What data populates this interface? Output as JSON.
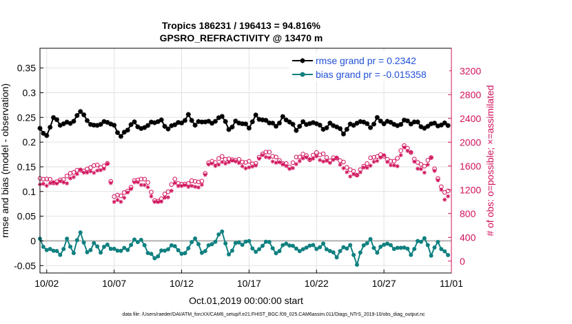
{
  "chart_data": {
    "type": "line",
    "title": "Tropics 186231 / 196413 = 94.816%",
    "subtitle": "GPSRO_REFRACTIVITY @ 13470 m",
    "xlabel": "Oct.01,2019 00:00:00 start",
    "ylabel": "rmse and bias (model - observation)",
    "ylabel_right": "# of obs: o=possible; ×=assimilated",
    "footnote": "data file: /Users/raeder/DAI/ATM_forcXX/CAM6_setup/f.e21.FHIST_BGC.f09_025.CAM6assim.011/Diags_NTrS_2019-10/obs_diag_output.nc",
    "xlim": [
      1.5,
      32.0
    ],
    "x_ticks": [
      {
        "v": 2,
        "label": "10/02"
      },
      {
        "v": 7,
        "label": "10/07"
      },
      {
        "v": 12,
        "label": "10/12"
      },
      {
        "v": 17,
        "label": "10/17"
      },
      {
        "v": 22,
        "label": "10/22"
      },
      {
        "v": 27,
        "label": "10/27"
      },
      {
        "v": 32,
        "label": "11/01"
      }
    ],
    "ylim": [
      -0.065,
      0.39
    ],
    "y_ticks": [
      {
        "v": -0.05,
        "label": "-0.05"
      },
      {
        "v": 0,
        "label": "0"
      },
      {
        "v": 0.05,
        "label": "0.05"
      },
      {
        "v": 0.1,
        "label": "0.1"
      },
      {
        "v": 0.15,
        "label": "0.15"
      },
      {
        "v": 0.2,
        "label": "0.2"
      },
      {
        "v": 0.25,
        "label": "0.25"
      },
      {
        "v": 0.3,
        "label": "0.3"
      },
      {
        "v": 0.35,
        "label": "0.35"
      }
    ],
    "ylim_right": [
      -200,
      3580
    ],
    "y_ticks_right": [
      {
        "v": 0,
        "label": "0"
      },
      {
        "v": 400,
        "label": "400"
      },
      {
        "v": 800,
        "label": "800"
      },
      {
        "v": 1200,
        "label": "1200"
      },
      {
        "v": 1600,
        "label": "1600"
      },
      {
        "v": 2000,
        "label": "2000"
      },
      {
        "v": 2400,
        "label": "2400"
      },
      {
        "v": 2800,
        "label": "2800"
      },
      {
        "v": 3200,
        "label": "3200"
      }
    ],
    "grid": true,
    "legend_position": "top-right",
    "series": [
      {
        "name": "rmse grand pr = 0.2342",
        "color": "#000000",
        "marker": "star",
        "axis": "left",
        "keypoints": [
          [
            1.5,
            0.228
          ],
          [
            2,
            0.215
          ],
          [
            2.5,
            0.25
          ],
          [
            3,
            0.232
          ],
          [
            3.5,
            0.24
          ],
          [
            4,
            0.245
          ],
          [
            4.5,
            0.262
          ],
          [
            5,
            0.24
          ],
          [
            5.5,
            0.235
          ],
          [
            6,
            0.24
          ],
          [
            6.5,
            0.238
          ],
          [
            7,
            0.23
          ],
          [
            7.5,
            0.215
          ],
          [
            8,
            0.228
          ],
          [
            8.5,
            0.236
          ],
          [
            9,
            0.225
          ],
          [
            9.5,
            0.24
          ],
          [
            10,
            0.24
          ],
          [
            10.5,
            0.238
          ],
          [
            11,
            0.228
          ],
          [
            11.5,
            0.242
          ],
          [
            12,
            0.235
          ],
          [
            12.5,
            0.25
          ],
          [
            13,
            0.24
          ],
          [
            13.5,
            0.245
          ],
          [
            14,
            0.235
          ],
          [
            14.5,
            0.24
          ],
          [
            15,
            0.26
          ],
          [
            15.5,
            0.225
          ],
          [
            16,
            0.235
          ],
          [
            16.5,
            0.24
          ],
          [
            17,
            0.235
          ],
          [
            17.5,
            0.25
          ],
          [
            18,
            0.24
          ],
          [
            18.5,
            0.245
          ],
          [
            19,
            0.235
          ],
          [
            19.5,
            0.245
          ],
          [
            20,
            0.24
          ],
          [
            20.5,
            0.23
          ],
          [
            21,
            0.24
          ],
          [
            21.5,
            0.232
          ],
          [
            22,
            0.24
          ],
          [
            22.5,
            0.23
          ],
          [
            23,
            0.235
          ],
          [
            23.5,
            0.228
          ],
          [
            24,
            0.22
          ],
          [
            24.5,
            0.238
          ],
          [
            25,
            0.235
          ],
          [
            25.5,
            0.24
          ],
          [
            26,
            0.232
          ],
          [
            26.5,
            0.25
          ],
          [
            27,
            0.235
          ],
          [
            27.5,
            0.24
          ],
          [
            28,
            0.235
          ],
          [
            28.5,
            0.245
          ],
          [
            29,
            0.235
          ],
          [
            29.5,
            0.24
          ],
          [
            30,
            0.23
          ],
          [
            30.5,
            0.238
          ],
          [
            31,
            0.23
          ],
          [
            31.5,
            0.238
          ]
        ]
      },
      {
        "name": "bias grand pr = -0.015358",
        "color": "#108080",
        "marker": "dot",
        "axis": "left",
        "keypoints": [
          [
            1.5,
            -0.005
          ],
          [
            2,
            -0.02
          ],
          [
            2.5,
            -0.01
          ],
          [
            3,
            -0.03
          ],
          [
            3.5,
            -0.005
          ],
          [
            4,
            -0.02
          ],
          [
            4.5,
            0.025
          ],
          [
            5,
            -0.03
          ],
          [
            5.5,
            -0.01
          ],
          [
            6,
            -0.015
          ],
          [
            6.5,
            -0.005
          ],
          [
            7,
            -0.025
          ],
          [
            7.5,
            -0.02
          ],
          [
            8,
            -0.01
          ],
          [
            8.5,
            0.0
          ],
          [
            9,
            -0.005
          ],
          [
            9.5,
            -0.02
          ],
          [
            10,
            -0.03
          ],
          [
            10.5,
            -0.025
          ],
          [
            11,
            -0.02
          ],
          [
            11.5,
            -0.005
          ],
          [
            12,
            -0.025
          ],
          [
            12.5,
            -0.02
          ],
          [
            13,
            0.005
          ],
          [
            13.5,
            -0.02
          ],
          [
            14,
            -0.01
          ],
          [
            14.5,
            -0.005
          ],
          [
            15,
            0.02
          ],
          [
            15.5,
            -0.025
          ],
          [
            16,
            -0.005
          ],
          [
            16.5,
            -0.01
          ],
          [
            17,
            0.0
          ],
          [
            17.5,
            -0.02
          ],
          [
            18,
            -0.01
          ],
          [
            18.5,
            -0.005
          ],
          [
            19,
            -0.025
          ],
          [
            19.5,
            -0.005
          ],
          [
            20,
            -0.01
          ],
          [
            20.5,
            -0.02
          ],
          [
            21,
            -0.015
          ],
          [
            21.5,
            -0.005
          ],
          [
            22,
            -0.02
          ],
          [
            22.5,
            -0.01
          ],
          [
            23,
            -0.015
          ],
          [
            23.5,
            -0.03
          ],
          [
            24,
            -0.02
          ],
          [
            24.5,
            -0.01
          ],
          [
            25,
            -0.04
          ],
          [
            25.5,
            -0.01
          ],
          [
            26,
            -0.005
          ],
          [
            26.5,
            -0.02
          ],
          [
            27,
            0.0
          ],
          [
            27.5,
            -0.015
          ],
          [
            28,
            -0.02
          ],
          [
            28.5,
            -0.005
          ],
          [
            29,
            -0.025
          ],
          [
            29.5,
            -0.01
          ],
          [
            30,
            0.005
          ],
          [
            30.5,
            -0.02
          ],
          [
            31,
            -0.005
          ],
          [
            31.5,
            -0.03
          ]
        ]
      },
      {
        "name": "# of obs possible",
        "color": "#d0105a",
        "marker": "circle",
        "axis": "right",
        "keypoints": [
          [
            1.5,
            1380
          ],
          [
            2,
            1360
          ],
          [
            2.5,
            1330
          ],
          [
            3,
            1380
          ],
          [
            3.5,
            1420
          ],
          [
            4,
            1480
          ],
          [
            4.5,
            1540
          ],
          [
            5,
            1560
          ],
          [
            5.5,
            1600
          ],
          [
            6,
            1560
          ],
          [
            6.5,
            1650
          ],
          [
            7,
            1100
          ],
          [
            7.5,
            1090
          ],
          [
            8,
            1160
          ],
          [
            8.5,
            1370
          ],
          [
            9,
            1400
          ],
          [
            9.5,
            1300
          ],
          [
            10,
            1000
          ],
          [
            10.5,
            1080
          ],
          [
            11,
            1180
          ],
          [
            11.5,
            1340
          ],
          [
            12,
            1290
          ],
          [
            12.5,
            1350
          ],
          [
            13,
            1330
          ],
          [
            13.5,
            1300
          ],
          [
            14,
            1680
          ],
          [
            14.5,
            1700
          ],
          [
            15,
            1720
          ],
          [
            15.5,
            1690
          ],
          [
            16,
            1750
          ],
          [
            16.5,
            1680
          ],
          [
            17,
            1620
          ],
          [
            17.5,
            1650
          ],
          [
            18,
            1860
          ],
          [
            18.5,
            1810
          ],
          [
            19,
            1700
          ],
          [
            19.5,
            1680
          ],
          [
            20,
            1620
          ],
          [
            20.5,
            1700
          ],
          [
            21,
            1780
          ],
          [
            21.5,
            1760
          ],
          [
            22,
            1830
          ],
          [
            22.5,
            1750
          ],
          [
            23,
            1700
          ],
          [
            23.5,
            1780
          ],
          [
            24,
            1640
          ],
          [
            24.5,
            1500
          ],
          [
            25,
            1480
          ],
          [
            25.5,
            1620
          ],
          [
            26,
            1700
          ],
          [
            26.5,
            1750
          ],
          [
            27,
            1800
          ],
          [
            27.5,
            1680
          ],
          [
            28,
            1700
          ],
          [
            28.5,
            1950
          ],
          [
            29,
            1850
          ],
          [
            29.5,
            1650
          ],
          [
            30,
            1580
          ],
          [
            30.5,
            1750
          ],
          [
            31,
            1400
          ],
          [
            31.5,
            1150
          ]
        ]
      },
      {
        "name": "# of obs assimilated",
        "color": "#d0105a",
        "marker": "asterisk",
        "axis": "right",
        "keypoints": [
          [
            1.5,
            1320
          ],
          [
            2,
            1300
          ],
          [
            2.5,
            1280
          ],
          [
            3,
            1320
          ],
          [
            3.5,
            1360
          ],
          [
            4,
            1420
          ],
          [
            4.5,
            1480
          ],
          [
            5,
            1500
          ],
          [
            5.5,
            1540
          ],
          [
            6,
            1500
          ],
          [
            6.5,
            1590
          ],
          [
            7,
            1040
          ],
          [
            7.5,
            1030
          ],
          [
            8,
            1100
          ],
          [
            8.5,
            1310
          ],
          [
            9,
            1340
          ],
          [
            9.5,
            1240
          ],
          [
            10,
            940
          ],
          [
            10.5,
            1020
          ],
          [
            11,
            1120
          ],
          [
            11.5,
            1280
          ],
          [
            12,
            1230
          ],
          [
            12.5,
            1290
          ],
          [
            13,
            1270
          ],
          [
            13.5,
            1240
          ],
          [
            14,
            1620
          ],
          [
            14.5,
            1640
          ],
          [
            15,
            1660
          ],
          [
            15.5,
            1630
          ],
          [
            16,
            1690
          ],
          [
            16.5,
            1620
          ],
          [
            17,
            1560
          ],
          [
            17.5,
            1590
          ],
          [
            18,
            1800
          ],
          [
            18.5,
            1750
          ],
          [
            19,
            1640
          ],
          [
            19.5,
            1620
          ],
          [
            20,
            1560
          ],
          [
            20.5,
            1640
          ],
          [
            21,
            1720
          ],
          [
            21.5,
            1700
          ],
          [
            22,
            1770
          ],
          [
            22.5,
            1690
          ],
          [
            23,
            1640
          ],
          [
            23.5,
            1720
          ],
          [
            24,
            1580
          ],
          [
            24.5,
            1440
          ],
          [
            25,
            1420
          ],
          [
            25.5,
            1560
          ],
          [
            26,
            1640
          ],
          [
            26.5,
            1690
          ],
          [
            27,
            1740
          ],
          [
            27.5,
            1620
          ],
          [
            28,
            1640
          ],
          [
            28.5,
            1890
          ],
          [
            29,
            1790
          ],
          [
            29.5,
            1590
          ],
          [
            30,
            1520
          ],
          [
            30.5,
            1690
          ],
          [
            31,
            1340
          ],
          [
            31.5,
            1090
          ]
        ]
      }
    ],
    "points_per_day": 4,
    "x_first": 1.5,
    "x_last": 31.75,
    "zero_line_color": "#b0b0b0",
    "right_axis_color": "#d0105a"
  }
}
